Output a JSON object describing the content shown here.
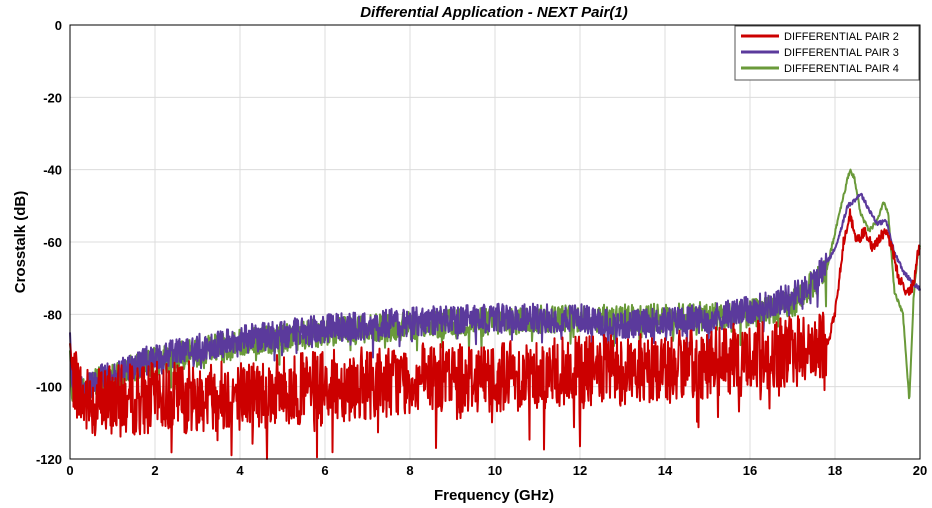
{
  "chart_data": {
    "type": "line",
    "title": "Differential Application - NEXT Pair(1)",
    "xlabel": "Frequency (GHz)",
    "ylabel": "Crosstalk (dB)",
    "xlim": [
      0,
      20
    ],
    "ylim": [
      -120,
      0
    ],
    "xticks": [
      0,
      2,
      4,
      6,
      8,
      10,
      12,
      14,
      16,
      18,
      20
    ],
    "yticks": [
      0,
      -20,
      -40,
      -60,
      -80,
      -100,
      -120
    ],
    "grid": true,
    "legend_position": "top-right",
    "series": [
      {
        "name": "DIFFERENTIAL PAIR 2",
        "color": "#cc0000",
        "noise": 10,
        "x": [
          0,
          0.05,
          0.3,
          1,
          2,
          4,
          6,
          8,
          10,
          12,
          14,
          16,
          17,
          17.8,
          18.0,
          18.2,
          18.35,
          18.5,
          18.7,
          18.9,
          19.0,
          19.1,
          19.2,
          19.35,
          19.5,
          19.7,
          19.85,
          19.95,
          20
        ],
        "y": [
          -88,
          -95,
          -104,
          -104,
          -103,
          -102,
          -100,
          -98,
          -97,
          -96,
          -95,
          -92,
          -90,
          -89,
          -80,
          -60,
          -52,
          -60,
          -57,
          -62,
          -60,
          -58,
          -57,
          -62,
          -70,
          -74,
          -72,
          -63,
          -61
        ]
      },
      {
        "name": "DIFFERENTIAL PAIR 3",
        "color": "#5b3a9c",
        "noise": 4,
        "x": [
          0,
          0.05,
          0.3,
          0.6,
          1,
          2,
          4,
          6,
          8,
          10,
          12,
          13,
          14,
          15,
          16,
          17,
          17.5,
          18,
          18.3,
          18.5,
          18.6,
          18.8,
          19.0,
          19.2,
          19.4,
          19.6,
          19.8,
          20
        ],
        "y": [
          -85,
          -100,
          -101,
          -98,
          -96,
          -92,
          -87,
          -84,
          -82,
          -81,
          -81,
          -83,
          -82,
          -81,
          -79,
          -75,
          -71,
          -62,
          -50,
          -48,
          -46.5,
          -51,
          -55,
          -54,
          -63,
          -68,
          -71,
          -73
        ]
      },
      {
        "name": "DIFFERENTIAL PAIR 4",
        "color": "#6a9a3a",
        "noise": 4,
        "x": [
          0,
          0.05,
          0.3,
          0.6,
          1,
          2,
          4,
          6,
          8,
          10,
          12,
          14,
          16,
          17,
          17.8,
          18.1,
          18.35,
          18.45,
          18.6,
          18.8,
          19.0,
          19.15,
          19.25,
          19.4,
          19.6,
          19.75,
          19.85,
          19.95,
          20
        ],
        "y": [
          -90,
          -104,
          -101,
          -99,
          -97,
          -93,
          -88,
          -85,
          -83,
          -82,
          -81,
          -81,
          -80,
          -77,
          -68,
          -52,
          -40,
          -42,
          -52,
          -57,
          -54,
          -49,
          -52,
          -74,
          -80,
          -104,
          -75,
          -63,
          -61
        ]
      }
    ]
  }
}
